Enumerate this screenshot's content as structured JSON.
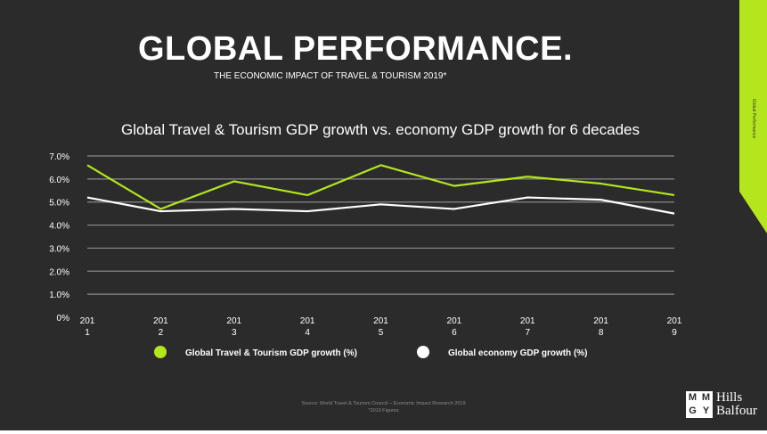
{
  "header": {
    "title": "GLOBAL PERFORMANCE.",
    "subtitle": "THE ECONOMIC IMPACT OF TRAVEL & TOURISM 2019*",
    "side_tab_label": "Global Performance",
    "side_tab_color": "#b5e61d"
  },
  "footer": {
    "source_line1": "Source:  World Travel & Tourism Council – Economic Impact Research 2019",
    "source_line2": "*2019 Figures"
  },
  "logo": {
    "box_letters": [
      "M",
      "M",
      "G",
      "Y"
    ],
    "text_line1": "Hills",
    "text_line2": "Balfour"
  },
  "chart_data": {
    "type": "line",
    "title": "Global Travel & Tourism GDP growth vs. economy GDP growth for 6 decades",
    "xlabel": "",
    "ylabel": "",
    "ylim": [
      0,
      7
    ],
    "grid": true,
    "legend_position": "bottom",
    "y_ticks": [
      "0%",
      "1.0%",
      "2.0%",
      "3.0%",
      "4.0%",
      "5.0%",
      "6.0%",
      "7.0%"
    ],
    "categories": [
      [
        "201",
        "1"
      ],
      [
        "201",
        "2"
      ],
      [
        "201",
        "3"
      ],
      [
        "201",
        "4"
      ],
      [
        "201",
        "5"
      ],
      [
        "201",
        "6"
      ],
      [
        "201",
        "7"
      ],
      [
        "201",
        "8"
      ],
      [
        "201",
        "9"
      ]
    ],
    "series": [
      {
        "name": "Global Travel & Tourism GDP growth (%)",
        "color": "#b5e61d",
        "values": [
          6.6,
          4.7,
          5.9,
          5.3,
          6.6,
          5.7,
          6.1,
          5.8,
          5.3
        ]
      },
      {
        "name": "Global economy GDP growth (%)",
        "color": "#ffffff",
        "values": [
          5.2,
          4.6,
          4.7,
          4.6,
          4.9,
          4.7,
          5.2,
          5.1,
          4.5
        ]
      }
    ]
  }
}
